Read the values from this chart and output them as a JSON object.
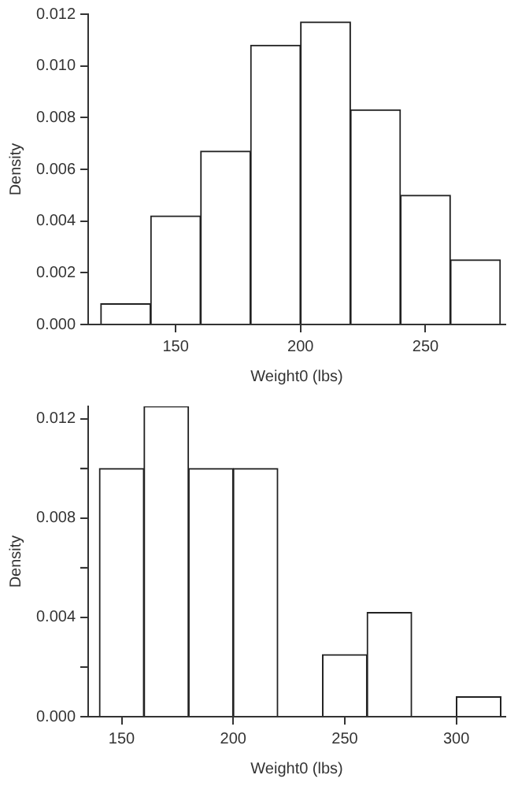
{
  "chart_data": [
    {
      "type": "histogram",
      "xlabel": "Weight0 (lbs)",
      "ylabel": "Density",
      "color": "#ffffff",
      "bins": [
        120,
        140,
        160,
        180,
        200,
        220,
        240,
        260,
        280
      ],
      "values": [
        0.0008,
        0.0042,
        0.0067,
        0.0108,
        0.0117,
        0.0083,
        0.005,
        0.0025
      ],
      "xlim": [
        115,
        282
      ],
      "xticks": [
        150,
        200,
        250
      ],
      "ylim": [
        0,
        0.012
      ],
      "yticks": [
        {
          "value": 0,
          "label": "0.000"
        },
        {
          "value": 0.002,
          "label": "0.002"
        },
        {
          "value": 0.004,
          "label": "0.004"
        },
        {
          "value": 0.006,
          "label": "0.006"
        },
        {
          "value": 0.008,
          "label": "0.008"
        },
        {
          "value": 0.01,
          "label": "0.010"
        },
        0.012
      ],
      "grid": false,
      "legend": false
    },
    {
      "type": "histogram",
      "xlabel": "Weight0 (lbs)",
      "ylabel": "Density",
      "color": "#ffffff",
      "bins": [
        140,
        160,
        180,
        200,
        220,
        240,
        260,
        280,
        300,
        320
      ],
      "values": [
        0.01,
        0.0125,
        0.01,
        0.01,
        0,
        0.0025,
        0.0042,
        0,
        0.0008
      ],
      "xlim": [
        135,
        322
      ],
      "xticks": [
        150,
        200,
        250,
        300
      ],
      "ylim": [
        0,
        0.0125
      ],
      "yticks": [
        {
          "value": 0,
          "label": "0.000"
        },
        {
          "value": 0.002,
          "label": null
        },
        {
          "value": 0.004,
          "label": "0.004"
        },
        {
          "value": 0.006,
          "label": null
        },
        {
          "value": 0.008,
          "label": "0.008"
        },
        {
          "value": 0.01,
          "label": null
        },
        0.012
      ],
      "grid": false,
      "legend": false
    }
  ]
}
